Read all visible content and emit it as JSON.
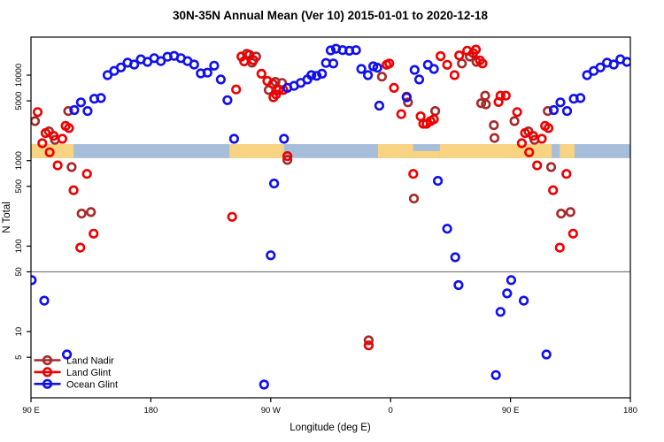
{
  "figure": {
    "title": "30N-35N Annual Mean (Ver 10)   2015-01-01 to 2020-12-18",
    "background": "#ffffff"
  },
  "axes": {
    "x": {
      "label": "Longitude (deg E)",
      "domain": [
        90,
        540
      ],
      "ticks": [
        {
          "pos": 90,
          "label": "90 E"
        },
        {
          "pos": 180,
          "label": "180"
        },
        {
          "pos": 270,
          "label": "90 W"
        },
        {
          "pos": 360,
          "label": "0"
        },
        {
          "pos": 450,
          "label": "90 E"
        },
        {
          "pos": 540,
          "label": "180"
        }
      ]
    },
    "y": {
      "label": "N Total",
      "scale": "log",
      "domain": [
        1.7,
        27800
      ],
      "ticks": [
        5,
        10,
        50,
        100,
        500,
        1000,
        5000,
        10000
      ]
    }
  },
  "reference_line": {
    "value": 50,
    "color": "#7f7f7f"
  },
  "map_band": {
    "value_range": [
      1070,
      1560
    ],
    "ocean_color": "#a7bedb",
    "land_color": "#f8d382",
    "land_segments": [
      [
        90,
        122
      ],
      [
        239,
        280
      ],
      [
        350.5,
        377
      ],
      [
        397,
        481
      ],
      [
        487,
        498
      ]
    ],
    "half_land_segments": [
      [
        377,
        397
      ]
    ]
  },
  "legend": {
    "items": [
      {
        "label": "Land Nadir",
        "color": "#A52A2A"
      },
      {
        "label": "Land Glint",
        "color": "#ee0000"
      },
      {
        "label": "Ocean Glint",
        "color": "#1010ee"
      }
    ]
  },
  "chart_data": {
    "type": "scatter",
    "title": "30N-35N Annual Mean (Ver 10)   2015-01-01 to 2020-12-18",
    "xlabel": "Longitude (deg E)",
    "ylabel": "N Total",
    "x_wrap_note": "x axis spans 450 deg (90E to 180 via 0); points with lon <= 180 are plotted again at lon+360",
    "marker": {
      "shape": "open-circle",
      "radius": 4.3,
      "stroke_width": 2.6
    },
    "series": [
      {
        "name": "Land Nadir",
        "color": "#A52A2A",
        "points": [
          [
            93,
            2900
          ],
          [
            103.5,
            2200
          ],
          [
            108,
            1750
          ],
          [
            118,
            3800
          ],
          [
            120.5,
            840
          ],
          [
            128,
            240
          ],
          [
            135,
            250
          ],
          [
            252,
            17800
          ],
          [
            256,
            14000
          ],
          [
            259,
            16500
          ],
          [
            268.5,
            6700
          ],
          [
            273.5,
            8350
          ],
          [
            278.5,
            8100
          ],
          [
            282.5,
            1020
          ],
          [
            343.5,
            7.9
          ],
          [
            353.5,
            9600
          ],
          [
            373,
            4800
          ],
          [
            377.5,
            360
          ],
          [
            393.5,
            3800
          ],
          [
            413.5,
            13700
          ],
          [
            419.5,
            16500
          ],
          [
            424.5,
            14300
          ],
          [
            428,
            4700
          ],
          [
            431,
            5750
          ],
          [
            431.5,
            4560
          ],
          [
            437.5,
            2600
          ],
          [
            438,
            1840
          ]
        ]
      },
      {
        "name": "Land Glint",
        "color": "#ee0000",
        "points": [
          [
            95,
            3700
          ],
          [
            98.5,
            1600
          ],
          [
            101,
            2100
          ],
          [
            104,
            1250
          ],
          [
            107,
            1950
          ],
          [
            110,
            880
          ],
          [
            113.5,
            1800
          ],
          [
            116,
            2550
          ],
          [
            118.5,
            2400
          ],
          [
            122,
            450
          ],
          [
            127,
            96
          ],
          [
            132,
            700
          ],
          [
            137,
            140
          ],
          [
            241,
            220
          ],
          [
            244,
            6800
          ],
          [
            248,
            16500
          ],
          [
            250,
            14500
          ],
          [
            254,
            17300
          ],
          [
            257,
            15000
          ],
          [
            263,
            10400
          ],
          [
            267.5,
            8550
          ],
          [
            271.5,
            7900
          ],
          [
            272,
            5500
          ],
          [
            274,
            5950
          ],
          [
            276,
            6700
          ],
          [
            279.5,
            6700
          ],
          [
            282.5,
            1130
          ],
          [
            343.5,
            6.9
          ],
          [
            357,
            13200
          ],
          [
            359,
            13700
          ],
          [
            362.5,
            7100
          ],
          [
            368,
            3500
          ],
          [
            372,
            5600
          ],
          [
            377,
            700
          ],
          [
            382.5,
            3300
          ],
          [
            384.5,
            2700
          ],
          [
            387,
            2700
          ],
          [
            390,
            2900
          ],
          [
            392.5,
            3050
          ],
          [
            397.5,
            16700
          ],
          [
            402.5,
            13200
          ],
          [
            408,
            10000
          ],
          [
            411.5,
            17000
          ],
          [
            417.5,
            19300
          ],
          [
            422,
            18100
          ],
          [
            424,
            19900
          ],
          [
            427,
            14900
          ],
          [
            429,
            13700
          ],
          [
            441,
            4850
          ],
          [
            442.5,
            5750
          ],
          [
            446.5,
            5750
          ]
        ]
      },
      {
        "name": "Ocean Glint",
        "color": "#1010ee",
        "points": [
          [
            90.5,
            40
          ],
          [
            100,
            23
          ],
          [
            117,
            5.4
          ],
          [
            122.5,
            3900
          ],
          [
            127.5,
            4800
          ],
          [
            132.5,
            3800
          ],
          [
            137.5,
            5300
          ],
          [
            142.5,
            5400
          ],
          [
            147.5,
            10000
          ],
          [
            152.5,
            11200
          ],
          [
            157.5,
            12300
          ],
          [
            162.5,
            14000
          ],
          [
            167.5,
            13300
          ],
          [
            172.5,
            15300
          ],
          [
            177.5,
            14300
          ],
          [
            182.5,
            15800
          ],
          [
            187.5,
            14600
          ],
          [
            192.5,
            16400
          ],
          [
            197.5,
            16800
          ],
          [
            202.5,
            15800
          ],
          [
            207.5,
            14600
          ],
          [
            212.5,
            13300
          ],
          [
            217.5,
            10500
          ],
          [
            222.5,
            10700
          ],
          [
            227.5,
            12900
          ],
          [
            232.5,
            8900
          ],
          [
            237.5,
            5100
          ],
          [
            242.5,
            1800
          ],
          [
            265,
            2.4
          ],
          [
            270,
            78
          ],
          [
            272.5,
            540
          ],
          [
            280,
            1800
          ],
          [
            282.5,
            7100
          ],
          [
            287.5,
            7500
          ],
          [
            292.5,
            8100
          ],
          [
            297.5,
            8900
          ],
          [
            300.5,
            10000
          ],
          [
            304.5,
            9800
          ],
          [
            308.5,
            10400
          ],
          [
            311.5,
            13900
          ],
          [
            315,
            19500
          ],
          [
            317,
            13700
          ],
          [
            319,
            20400
          ],
          [
            324,
            19600
          ],
          [
            329,
            19300
          ],
          [
            334,
            19600
          ],
          [
            338,
            11800
          ],
          [
            343,
            10000
          ],
          [
            347,
            12700
          ],
          [
            350,
            12200
          ],
          [
            351.5,
            4400
          ],
          [
            372,
            5500
          ],
          [
            378,
            11500
          ],
          [
            381.5,
            8900
          ],
          [
            388,
            13200
          ],
          [
            392.5,
            11800
          ],
          [
            395.5,
            580
          ],
          [
            402.5,
            160
          ],
          [
            408.5,
            74
          ],
          [
            411,
            35
          ],
          [
            439,
            3.1
          ],
          [
            442.5,
            17
          ],
          [
            447.5,
            28
          ]
        ]
      }
    ]
  }
}
